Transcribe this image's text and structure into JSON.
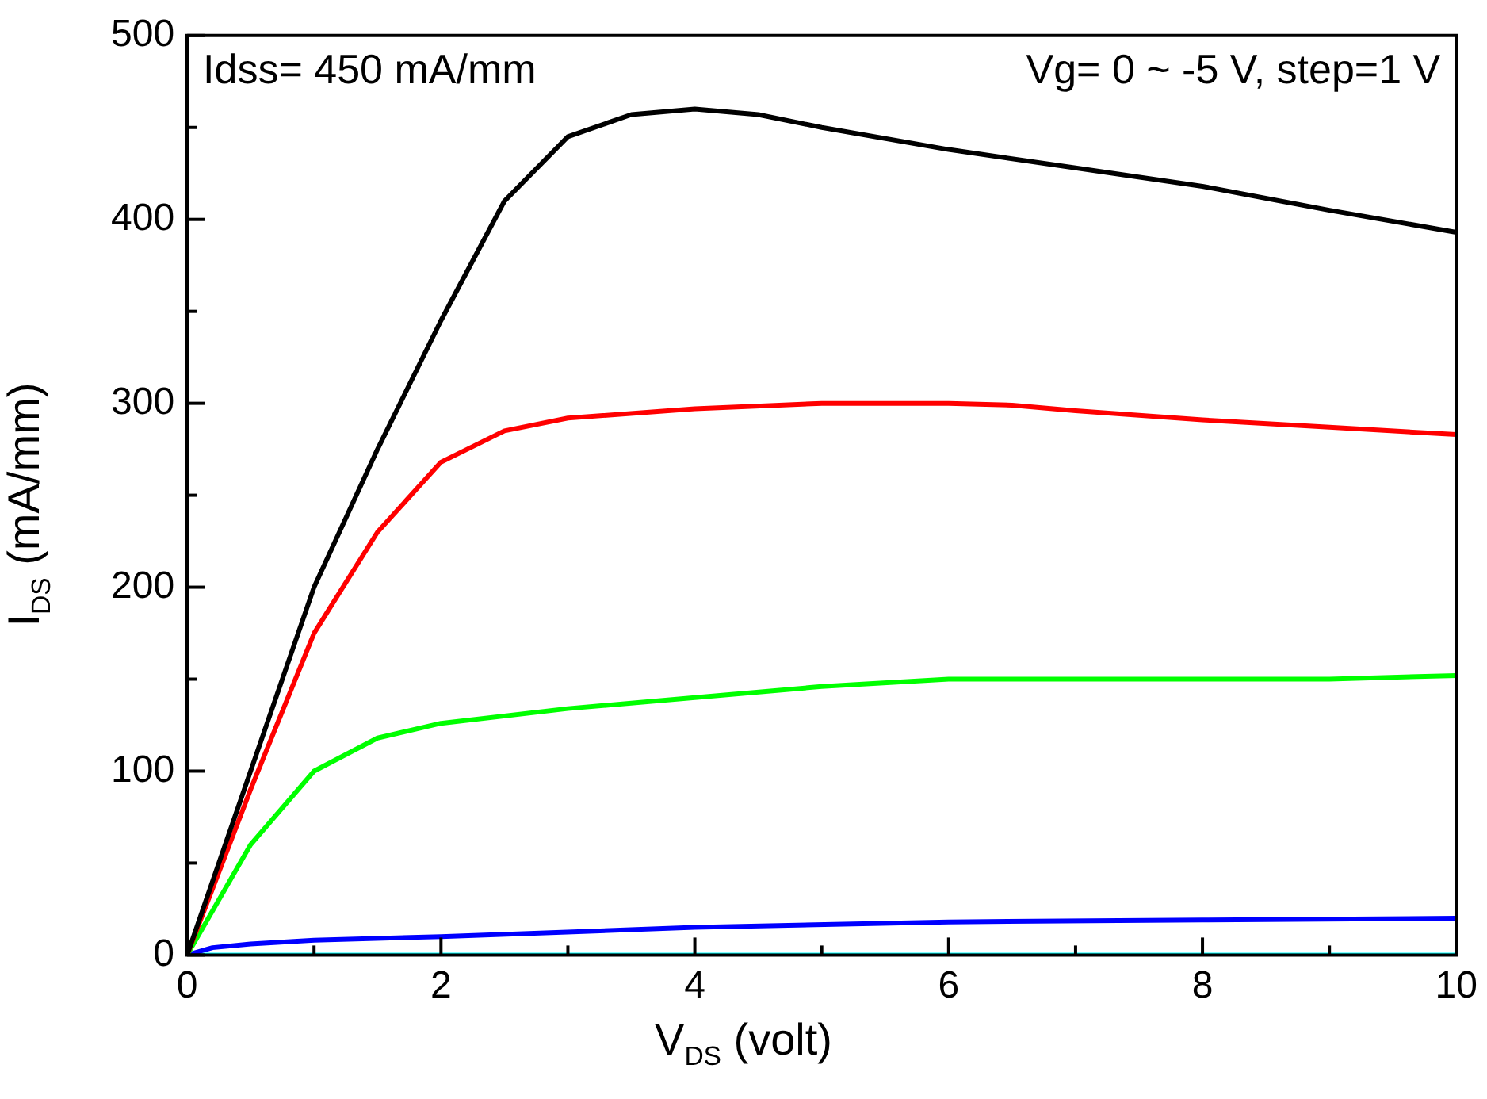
{
  "chart_data": {
    "type": "line",
    "xlabel": "V$_{DS}$ (volt)",
    "ylabel": "I$_{DS}$ (mA/mm)",
    "annotations": [
      "Idss= 450 mA/mm",
      "Vg= 0 ~ -5 V, step=1 V"
    ],
    "xlim": [
      0,
      10
    ],
    "xticks": [
      0,
      {
        "value": 1,
        "label": null
      },
      2,
      {
        "value": 3,
        "label": null
      },
      4,
      {
        "value": 5,
        "label": null
      },
      6,
      {
        "value": 7,
        "label": null
      },
      8,
      {
        "value": 9,
        "label": null
      },
      10
    ],
    "ylim": [
      0,
      500
    ],
    "yticks": [
      0,
      {
        "value": 50,
        "label": null
      },
      100,
      {
        "value": 150,
        "label": null
      },
      200,
      {
        "value": 250,
        "label": null
      },
      300,
      {
        "value": 350,
        "label": null
      },
      400,
      {
        "value": 450,
        "label": null
      },
      500
    ],
    "grid": false,
    "marker": "none",
    "line_style": "solid",
    "series": [
      {
        "color": "#000000",
        "x": [
          0,
          0.5,
          1,
          1.5,
          2,
          2.5,
          3,
          3.5,
          4,
          4.5,
          5,
          6,
          7,
          8,
          9,
          10
        ],
        "values": [
          0,
          100,
          200,
          275,
          345,
          410,
          445,
          457,
          460,
          457,
          450,
          438,
          428,
          418,
          405,
          393
        ]
      },
      {
        "color": "#ff0000",
        "x": [
          0,
          0.5,
          1,
          1.5,
          2,
          2.5,
          3,
          4,
          5,
          6,
          6.5,
          7,
          8,
          9,
          10
        ],
        "values": [
          0,
          90,
          175,
          230,
          268,
          285,
          292,
          297,
          300,
          300,
          299,
          296,
          291,
          287,
          283
        ]
      },
      {
        "color": "#00ff00",
        "x": [
          0,
          0.5,
          1,
          1.5,
          2,
          3,
          4,
          5,
          6,
          7,
          8,
          9,
          10
        ],
        "values": [
          0,
          60,
          100,
          118,
          126,
          134,
          140,
          146,
          150,
          150,
          150,
          150,
          152
        ]
      },
      {
        "color": "#0000ff",
        "x": [
          0,
          0.2,
          0.5,
          1,
          2,
          4,
          6,
          8,
          10
        ],
        "values": [
          0,
          4,
          6,
          8,
          10,
          15,
          18,
          19,
          20
        ]
      },
      {
        "color": "#00ffff",
        "x": [
          0,
          10
        ],
        "values": [
          0,
          0
        ]
      }
    ]
  }
}
